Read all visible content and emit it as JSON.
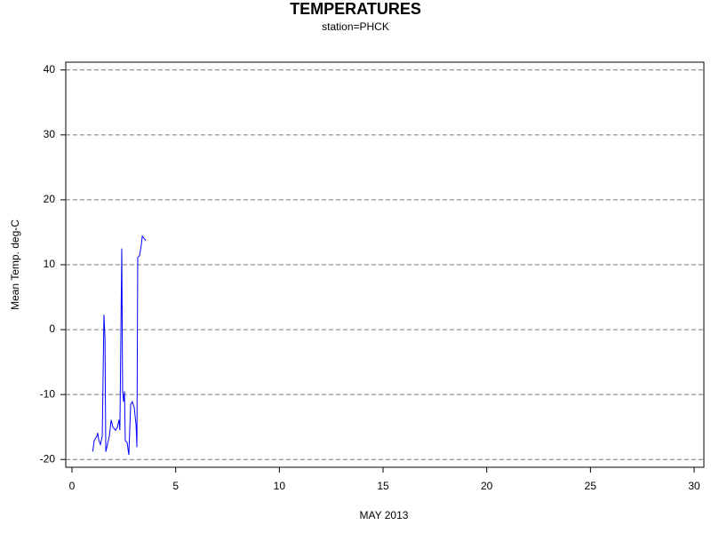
{
  "chart_data": {
    "type": "line",
    "title": "TEMPERATURES",
    "subtitle": "station=PHCK",
    "x_label": "MAY 2013",
    "y_label": "Mean Temp. deg-C",
    "xlim": [
      -0.3,
      30.47
    ],
    "ylim": [
      -21.2,
      41.2
    ],
    "xticks": [
      0,
      5,
      10,
      15,
      20,
      25,
      30
    ],
    "yticks": [
      -20,
      -10,
      0,
      10,
      20,
      30,
      40
    ],
    "grid": true,
    "series": [
      {
        "color": "#0000ff",
        "x": [
          1.0,
          1.07,
          1.2,
          1.24,
          1.29,
          1.37,
          1.46,
          1.54,
          1.59,
          1.63,
          1.71,
          1.8,
          1.89,
          1.97,
          2.1,
          2.19,
          2.27,
          2.31,
          2.4,
          2.44,
          2.49,
          2.53,
          2.57,
          2.66,
          2.74,
          2.83,
          2.91,
          3.0,
          3.09,
          3.13,
          3.17,
          3.26,
          3.34,
          3.39,
          3.47,
          3.56
        ],
        "values": [
          -18.8,
          -17.1,
          -16.4,
          -15.9,
          -17.0,
          -17.7,
          -16.4,
          2.3,
          -1.2,
          -18.8,
          -17.7,
          -16.4,
          -13.9,
          -15.0,
          -15.5,
          -15.0,
          -13.9,
          -15.5,
          12.5,
          -9.5,
          -11.1,
          -9.5,
          -17.1,
          -17.4,
          -19.3,
          -11.5,
          -11.1,
          -12.0,
          -14.7,
          -18.1,
          11.1,
          11.4,
          13.0,
          14.4,
          14.1,
          13.7
        ]
      }
    ]
  }
}
